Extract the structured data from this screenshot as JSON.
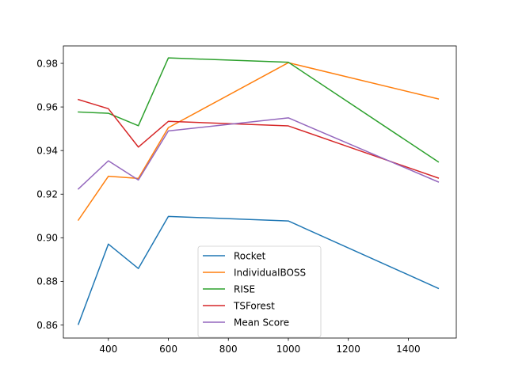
{
  "chart_data": {
    "type": "line",
    "title": "",
    "xlabel": "",
    "ylabel": "",
    "xlim": [
      250,
      1560
    ],
    "ylim": [
      0.854,
      0.988
    ],
    "xticks": [
      400,
      600,
      800,
      1000,
      1200,
      1400
    ],
    "yticks": [
      0.86,
      0.88,
      0.9,
      0.92,
      0.94,
      0.96,
      0.98
    ],
    "ytick_labels": [
      "0.86",
      "0.88",
      "0.90",
      "0.92",
      "0.94",
      "0.96",
      "0.98"
    ],
    "grid": false,
    "legend_position": "lower-center",
    "x": [
      300,
      400,
      500,
      600,
      1000,
      1500
    ],
    "series": [
      {
        "name": "Rocket",
        "color": "#1f77b4",
        "values": [
          0.8603,
          0.8971,
          0.8859,
          0.9098,
          0.9077,
          0.8768
        ]
      },
      {
        "name": "IndividualBOSS",
        "color": "#ff7f0e",
        "values": [
          0.9081,
          0.9282,
          0.9272,
          0.9505,
          0.9803,
          0.9637
        ]
      },
      {
        "name": "RISE",
        "color": "#2ca02c",
        "values": [
          0.9577,
          0.9571,
          0.9514,
          0.9825,
          0.9805,
          0.9348
        ]
      },
      {
        "name": "TSForest",
        "color": "#d62728",
        "values": [
          0.9634,
          0.9592,
          0.9416,
          0.9534,
          0.9513,
          0.9274
        ]
      },
      {
        "name": "Mean Score",
        "color": "#9467bd",
        "values": [
          0.9224,
          0.9353,
          0.9265,
          0.949,
          0.955,
          0.9256
        ]
      }
    ]
  }
}
